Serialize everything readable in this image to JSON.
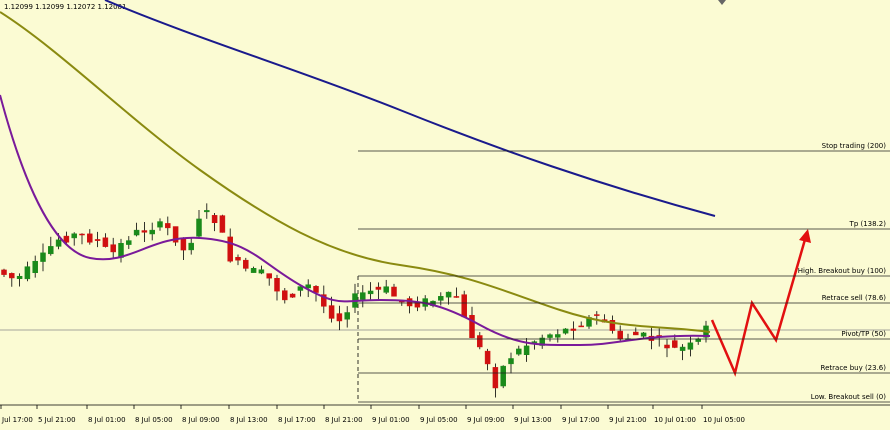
{
  "header": {
    "quote": "1.12099 1.12099 1.12072 1.12081"
  },
  "levels": [
    "Stop trading (200)",
    "Tp (138.2)",
    "High. Breakout buy (100)",
    "Retrace sell (78.6)",
    "Pivot/TP (50)",
    "Retrace buy (23.6)",
    "Low. Breakout sell (0)"
  ],
  "time_labels": [
    "Jul 17:00",
    "5 Jul 21:00",
    "8 Jul 01:00",
    "8 Jul 05:00",
    "8 Jul 09:00",
    "8 Jul 13:00",
    "8 Jul 17:00",
    "8 Jul 21:00",
    "9 Jul 01:00",
    "9 Jul 05:00",
    "9 Jul 09:00",
    "9 Jul 13:00",
    "9 Jul 17:00",
    "9 Jul 21:00",
    "10 Jul 01:00",
    "10 Jul 05:00"
  ]
}
